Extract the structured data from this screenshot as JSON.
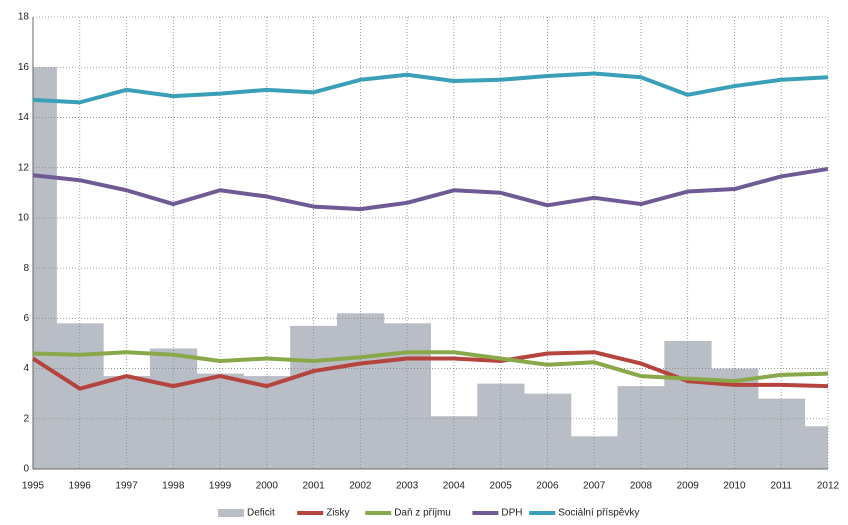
{
  "chart_data": {
    "type": "bar-line",
    "categories": [
      "1995",
      "1996",
      "1997",
      "1998",
      "1999",
      "2000",
      "2001",
      "2002",
      "2003",
      "2004",
      "2005",
      "2006",
      "2007",
      "2008",
      "2009",
      "2010",
      "2011",
      "2012"
    ],
    "series": [
      {
        "name": "Deficit",
        "type": "bar",
        "color": "#b9bdc5",
        "values": [
          16,
          5.8,
          3.7,
          4.8,
          3.8,
          3.7,
          5.7,
          6.2,
          5.8,
          2.1,
          3.4,
          3.0,
          1.3,
          3.3,
          5.1,
          4.0,
          2.8,
          1.7
        ]
      },
      {
        "name": "Zisky",
        "type": "line",
        "color": "#b5433e",
        "values": [
          4.4,
          3.2,
          3.7,
          3.3,
          3.7,
          3.3,
          3.9,
          4.2,
          4.4,
          4.4,
          4.3,
          4.6,
          4.65,
          4.2,
          3.5,
          3.35,
          3.35,
          3.3
        ]
      },
      {
        "name": "Daň z příjmu",
        "type": "line",
        "color": "#89a84a",
        "values": [
          4.6,
          4.55,
          4.65,
          4.55,
          4.3,
          4.4,
          4.3,
          4.45,
          4.65,
          4.65,
          4.4,
          4.15,
          4.25,
          3.7,
          3.6,
          3.5,
          3.75,
          3.8
        ]
      },
      {
        "name": "DPH",
        "type": "line",
        "color": "#6f5a96",
        "values": [
          11.7,
          11.5,
          11.1,
          10.55,
          11.1,
          10.85,
          10.45,
          10.35,
          10.6,
          11.1,
          11.0,
          10.5,
          10.8,
          10.55,
          11.05,
          11.15,
          11.65,
          11.95
        ]
      },
      {
        "name": "Sociální příspěvky",
        "type": "line",
        "color": "#3aa0b8",
        "values": [
          14.7,
          14.6,
          15.1,
          14.85,
          14.95,
          15.1,
          15.0,
          15.5,
          15.7,
          15.45,
          15.5,
          15.65,
          15.75,
          15.6,
          14.9,
          15.25,
          15.5,
          15.6
        ]
      }
    ],
    "ylim": [
      0,
      18
    ],
    "yticks": [
      0,
      2,
      4,
      6,
      8,
      10,
      12,
      14,
      16,
      18
    ],
    "grid": true,
    "legend": "bottom"
  }
}
